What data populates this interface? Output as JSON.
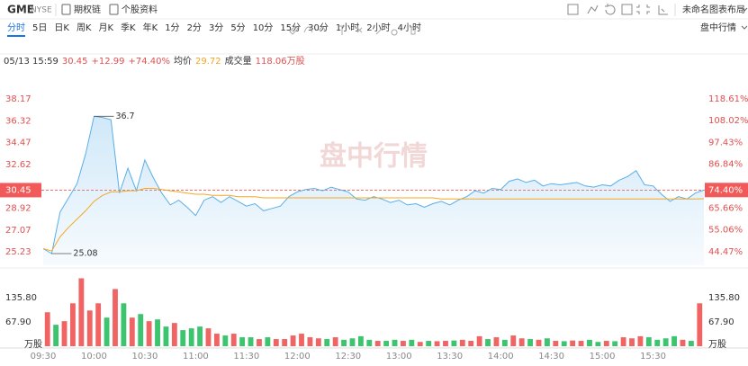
{
  "header": {
    "symbol": "GME",
    "exchange": "NYSE",
    "links": [
      "期权链",
      "个股资料"
    ],
    "layout": "未命名图表布局"
  },
  "periods": [
    "分时",
    "5日",
    "日K",
    "周K",
    "月K",
    "季K",
    "年K",
    "1分",
    "2分",
    "3分",
    "5分",
    "10分",
    "15分",
    "30分",
    "1小时",
    "2小时",
    "4小时"
  ],
  "active_period": 0,
  "quote_mode": "盘中行情",
  "info": {
    "datetime": "05/13 15:59",
    "price": 30.45,
    "change": "+12.99",
    "change_pct": "+74.40%",
    "avg_label": "均价",
    "avg_price": 29.72,
    "volume_label": "成交量",
    "volume": "118.06万股"
  },
  "chart_data": [
    {
      "type": "line",
      "xlim": [
        "09:30",
        "16:00"
      ],
      "ylim": [
        24.09,
        39.31
      ],
      "yticks": [
        38.17,
        36.32,
        34.47,
        32.62,
        30.45,
        28.92,
        27.07,
        25.23
      ],
      "y2lim": [
        37.91,
        125.09
      ],
      "y2ticks": [
        {
          "value": 118.61,
          "label": "118.61%"
        },
        {
          "value": 108.02,
          "label": "108.02%"
        },
        {
          "value": 97.43,
          "label": "97.43%"
        },
        {
          "value": 86.84,
          "label": "86.84%"
        },
        {
          "value": 74.4,
          "label": "74.40%"
        },
        {
          "value": 65.66,
          "label": "65.66%"
        },
        {
          "value": 55.06,
          "label": "55.06%"
        },
        {
          "value": 44.47,
          "label": "44.47%"
        }
      ],
      "high": 36.7,
      "low": 25.08,
      "series": [
        {
          "color": "#5aaee8",
          "values": [
            25.5,
            25.08,
            28.6,
            29.8,
            31.0,
            33.5,
            36.7,
            36.6,
            36.4,
            30.2,
            32.3,
            30.4,
            33.0,
            31.5,
            30.2,
            29.2,
            29.6,
            29.0,
            28.3,
            29.6,
            29.9,
            29.4,
            29.9,
            29.5,
            29.1,
            29.3,
            28.7,
            28.9,
            29.1,
            29.9,
            30.3,
            30.5,
            30.6,
            30.4,
            30.7,
            30.5,
            30.3,
            29.7,
            29.6,
            29.9,
            29.7,
            29.4,
            29.6,
            29.2,
            29.3,
            29.0,
            29.3,
            29.5,
            29.2,
            29.6,
            29.9,
            30.4,
            30.2,
            30.6,
            30.5,
            31.2,
            31.4,
            31.1,
            31.3,
            30.8,
            31.0,
            30.9,
            31.0,
            31.1,
            30.8,
            30.7,
            30.9,
            30.8,
            31.3,
            31.6,
            32.1,
            30.9,
            30.8,
            30.1,
            29.5,
            29.9,
            29.7,
            30.2,
            30.45
          ]
        },
        {
          "color": "#f5a623",
          "values": [
            25.5,
            25.3,
            26.5,
            27.3,
            28.0,
            28.7,
            29.5,
            30.0,
            30.3,
            30.3,
            30.4,
            30.4,
            30.6,
            30.6,
            30.5,
            30.4,
            30.3,
            30.2,
            30.1,
            30.1,
            30.0,
            30.0,
            30.0,
            29.9,
            29.9,
            29.9,
            29.8,
            29.8,
            29.8,
            29.8,
            29.8,
            29.8,
            29.8,
            29.8,
            29.8,
            29.8,
            29.8,
            29.8,
            29.8,
            29.8,
            29.8,
            29.8,
            29.8,
            29.8,
            29.8,
            29.8,
            29.8,
            29.7,
            29.7,
            29.7,
            29.7,
            29.7,
            29.7,
            29.7,
            29.7,
            29.7,
            29.7,
            29.7,
            29.7,
            29.7,
            29.7,
            29.7,
            29.7,
            29.7,
            29.7,
            29.7,
            29.7,
            29.7,
            29.7,
            29.7,
            29.7,
            29.7,
            29.7,
            29.7,
            29.7,
            29.7,
            29.7,
            29.7,
            29.72
          ]
        }
      ]
    },
    {
      "type": "bar",
      "xlim": [
        "09:30",
        "16:00"
      ],
      "ylim": [
        0,
        193.7
      ],
      "yticks": [
        {
          "value": 135.8,
          "label": "135.80"
        },
        {
          "value": 67.9,
          "label": "67.90"
        }
      ],
      "y_label": "万股",
      "xticks": [
        "09:30",
        "10:00",
        "10:30",
        "11:00",
        "11:30",
        "12:00",
        "12:30",
        "13:00",
        "13:30",
        "14:00",
        "14:30",
        "15:00",
        "15:30"
      ],
      "up_color": "#f06464",
      "down_color": "#3cc46e",
      "values": [
        95,
        60,
        70,
        120,
        190,
        100,
        120,
        80,
        160,
        120,
        80,
        90,
        70,
        75,
        55,
        65,
        45,
        50,
        55,
        50,
        35,
        30,
        35,
        25,
        25,
        20,
        25,
        20,
        20,
        30,
        35,
        25,
        22,
        20,
        25,
        18,
        22,
        28,
        18,
        15,
        15,
        18,
        15,
        18,
        12,
        15,
        14,
        15,
        16,
        18,
        15,
        28,
        20,
        25,
        18,
        30,
        22,
        20,
        18,
        22,
        15,
        14,
        16,
        15,
        18,
        12,
        15,
        14,
        25,
        22,
        28,
        25,
        18,
        22,
        28,
        18,
        15,
        120
      ],
      "directions": [
        "up",
        "down",
        "up",
        "up",
        "up",
        "up",
        "up",
        "down",
        "up",
        "down",
        "up",
        "down",
        "up",
        "down",
        "down",
        "up",
        "down",
        "down",
        "down",
        "up",
        "up",
        "down",
        "up",
        "down",
        "down",
        "up",
        "down",
        "up",
        "up",
        "up",
        "up",
        "up",
        "up",
        "down",
        "up",
        "down",
        "down",
        "down",
        "down",
        "up",
        "down",
        "down",
        "up",
        "down",
        "up",
        "down",
        "up",
        "up",
        "down",
        "up",
        "up",
        "up",
        "down",
        "up",
        "down",
        "up",
        "up",
        "down",
        "up",
        "down",
        "up",
        "down",
        "up",
        "up",
        "down",
        "down",
        "up",
        "down",
        "up",
        "up",
        "up",
        "down",
        "down",
        "down",
        "down",
        "up",
        "down",
        "up"
      ]
    }
  ]
}
